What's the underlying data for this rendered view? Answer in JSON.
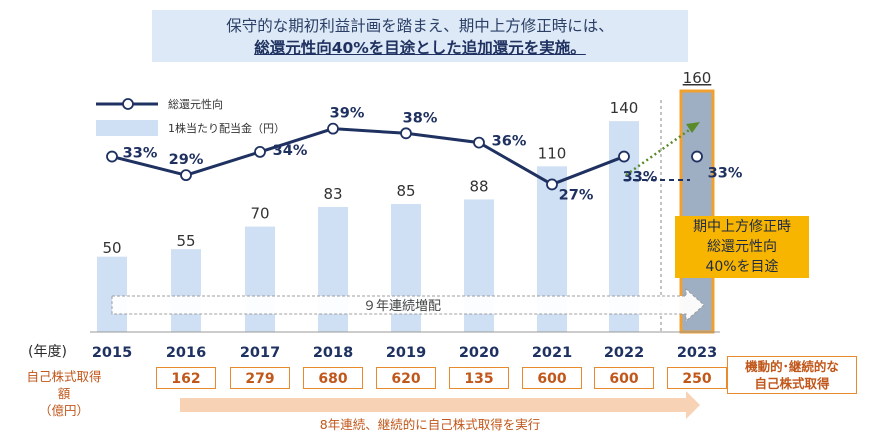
{
  "banner": {
    "line1": "保守的な期初利益計画を踏まえ、期中上方修正時には、",
    "line2": "総還元性向40%を目途とした追加還元を実施。"
  },
  "chart_data": {
    "type": "bar+line",
    "categories": [
      "2015",
      "2016",
      "2017",
      "2018",
      "2019",
      "2020",
      "2021",
      "2022",
      "2023"
    ],
    "series": [
      {
        "name": "1株当たり配当金（円）",
        "type": "bar",
        "values": [
          50,
          55,
          70,
          83,
          85,
          88,
          110,
          140,
          160
        ]
      },
      {
        "name": "総還元性向",
        "type": "line",
        "values": [
          33,
          29,
          34,
          39,
          38,
          36,
          27,
          33,
          33
        ],
        "labels": [
          "33%",
          "29%",
          "34%",
          "39%",
          "38%",
          "36%",
          "27%",
          "33%",
          "33%"
        ]
      }
    ],
    "year_axis_label": "(年度)",
    "legend": [
      "総還元性向",
      "1株当たり配当金（円）"
    ],
    "arrow_dividend": "９年連続増配",
    "callout": [
      "期中上方修正時",
      "総還元性向",
      "40%を目途"
    ]
  },
  "buybacks": {
    "label_line1": "自己株式取得額",
    "label_line2": "（億円）",
    "values": [
      "162",
      "279",
      "680",
      "620",
      "135",
      "600",
      "600",
      "250"
    ],
    "last_note_line1": "機動的･継続的な",
    "last_note_line2": "自己株式取得"
  },
  "bottom_caption": "8年連続、継続的に自己株式取得を実行",
  "colors": {
    "bar": "#cfe0f4",
    "bar_2023": "#9fafc3",
    "highlight": "#f0a030",
    "line": "#1f3160",
    "dotted_arrow": "#5a8a2a",
    "callout": "#f7b500",
    "orange_text": "#c1571a"
  }
}
